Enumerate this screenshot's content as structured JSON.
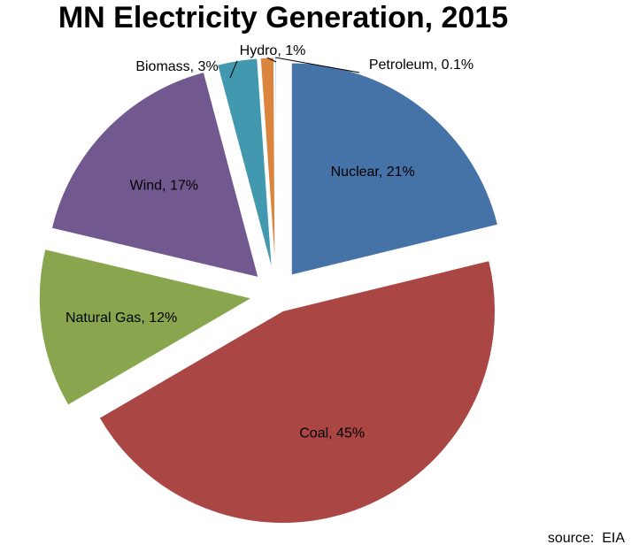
{
  "chart_data": {
    "type": "pie",
    "title": "MN Electricity Generation, 2015",
    "slices": [
      {
        "name": "Nuclear",
        "value": 21,
        "label": "Nuclear, 21%",
        "color": "#4572A7"
      },
      {
        "name": "Coal",
        "value": 45,
        "label": "Coal, 45%",
        "color": "#AA4643"
      },
      {
        "name": "Natural Gas",
        "value": 12,
        "label": "Natural Gas, 12%",
        "color": "#89A54E"
      },
      {
        "name": "Wind",
        "value": 17,
        "label": "Wind, 17%",
        "color": "#71588F"
      },
      {
        "name": "Biomass",
        "value": 3,
        "label": "Biomass, 3%",
        "color": "#4198AF"
      },
      {
        "name": "Hydro",
        "value": 1,
        "label": "Hydro, 1%",
        "color": "#DB843D"
      },
      {
        "name": "Petroleum",
        "value": 0.1,
        "label": "Petroleum, 0.1%",
        "color": "#93A9CF"
      }
    ],
    "exploded": true,
    "source": "source:  EIA"
  }
}
